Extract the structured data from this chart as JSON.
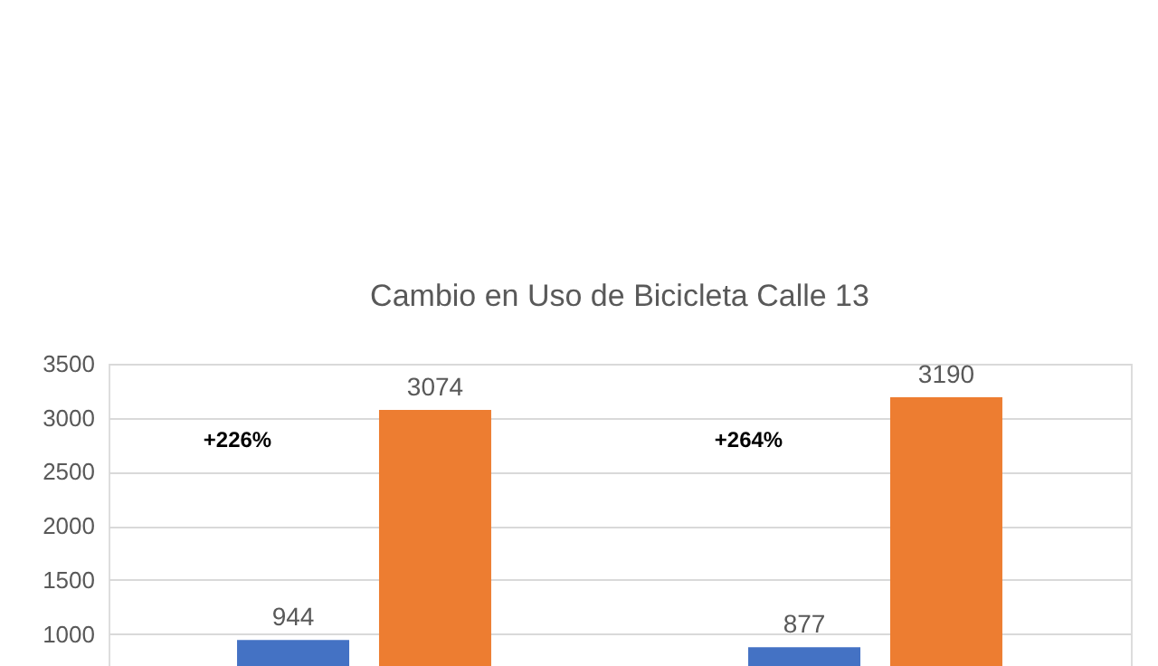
{
  "chart_data": {
    "type": "bar",
    "title": "Cambio en Uso de Bicicleta Calle 13",
    "categories": [
      null,
      null
    ],
    "series": [
      {
        "color": "#4472c4",
        "values": [
          944,
          877
        ]
      },
      {
        "color": "#ed7d31",
        "values": [
          3074,
          3190
        ]
      }
    ],
    "ylim": [
      0,
      3500
    ],
    "yticks": [
      1000,
      1500,
      2000,
      2500,
      3000,
      3500
    ],
    "grid": "y",
    "legend": false,
    "data_labels": true,
    "annotations": [
      "+226%",
      "+264%"
    ]
  }
}
